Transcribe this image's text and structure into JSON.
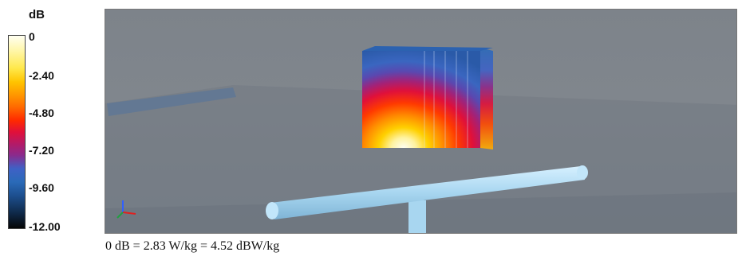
{
  "legend": {
    "unit": "dB",
    "ticks": [
      "0",
      "-2.40",
      "-4.80",
      "-7.20",
      "-9.60",
      "-12.00"
    ],
    "colors": [
      "#fffff2",
      "#ffe84a",
      "#ff6a00",
      "#e0103a",
      "#3f61c6",
      "#050505"
    ]
  },
  "caption": "0 dB = 2.83 W/kg = 4.52 dBW/kg",
  "scene": {
    "background": "#7d838a",
    "pipe_color": "#a8d6f0",
    "axis_gizmo_icon": "xyz-axes-icon"
  }
}
